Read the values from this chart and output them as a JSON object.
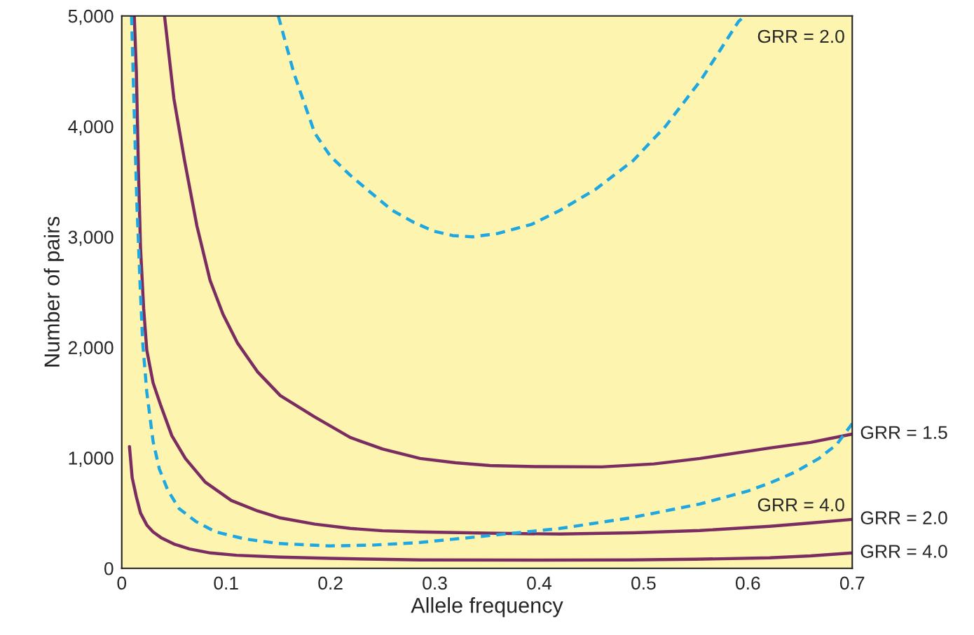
{
  "chart_data": {
    "type": "line",
    "xlabel": "Allele frequency",
    "ylabel": "Number of pairs",
    "xlim": [
      0,
      0.7
    ],
    "ylim": [
      0,
      5000
    ],
    "xticks": [
      0,
      0.1,
      0.2,
      0.3,
      0.4,
      0.5,
      0.6,
      0.7
    ],
    "yticks": [
      0,
      {
        "value": 1000,
        "label": "1,000"
      },
      {
        "value": 2000,
        "label": "2,000"
      },
      {
        "value": 3000,
        "label": "3,000"
      },
      {
        "value": 4000,
        "label": "4,000"
      },
      {
        "value": 5000,
        "label": "5,000"
      }
    ],
    "grid": false,
    "marker": "none",
    "series": [
      {
        "name": "GRR = 1.5",
        "color": "#7b2d62",
        "line_style": "solid",
        "x": [
          0.041,
          0.05,
          0.06,
          0.072,
          0.0846,
          0.097,
          0.111,
          0.13,
          0.152,
          0.185,
          0.219,
          0.25,
          0.286,
          0.32,
          0.353,
          0.4,
          0.46,
          0.51,
          0.554,
          0.621,
          0.66,
          0.7
        ],
        "values": [
          5000,
          4250,
          3700,
          3100,
          2608,
          2300,
          2038,
          1780,
          1563,
          1370,
          1184,
          1080,
          994,
          955,
          930,
          920,
          918,
          945,
          994,
          1089,
          1140,
          1215
        ]
      },
      {
        "name": "GRR = 2.0",
        "color": "#7b2d62",
        "line_style": "solid",
        "x": [
          0.012,
          0.014,
          0.016,
          0.018,
          0.021,
          0.024,
          0.03,
          0.0376,
          0.048,
          0.061,
          0.08,
          0.105,
          0.13,
          0.152,
          0.185,
          0.219,
          0.25,
          0.286,
          0.35,
          0.42,
          0.49,
          0.554,
          0.621,
          0.66,
          0.7
        ],
        "values": [
          5000,
          4500,
          3600,
          2900,
          2350,
          1975,
          1680,
          1468,
          1200,
          994,
          780,
          614,
          520,
          456,
          400,
          361,
          340,
          329,
          318,
          310,
          322,
          342,
          380,
          410,
          443
        ]
      },
      {
        "name": "GRR = 4.0",
        "color": "#7b2d62",
        "line_style": "solid",
        "x": [
          0.0074,
          0.01,
          0.014,
          0.018,
          0.024,
          0.03,
          0.0376,
          0.05,
          0.065,
          0.085,
          0.11,
          0.152,
          0.2,
          0.286,
          0.4,
          0.487,
          0.55,
          0.621,
          0.66,
          0.7
        ],
        "values": [
          1101,
          820,
          646,
          500,
          392,
          330,
          278,
          220,
          175,
          139,
          118,
          101,
          90,
          76,
          75,
          76,
          82,
          95,
          112,
          139
        ]
      },
      {
        "color": "#1ea7e1",
        "line_style": "dashed",
        "x": [
          0.0094,
          0.012,
          0.0145,
          0.0174,
          0.02,
          0.024,
          0.03,
          0.036,
          0.044,
          0.055,
          0.071,
          0.09,
          0.118,
          0.15,
          0.199,
          0.24,
          0.286,
          0.353,
          0.42,
          0.487,
          0.554,
          0.6,
          0.621,
          0.645,
          0.668,
          0.685,
          0.7
        ],
        "values": [
          5000,
          4100,
          3300,
          2608,
          2050,
          1595,
          1150,
          900,
          709,
          540,
          424,
          330,
          266,
          225,
          203,
          210,
          234,
          297,
          361,
          456,
          582,
          700,
          772,
          870,
          994,
          1120,
          1310
        ]
      },
      {
        "color": "#1ea7e1",
        "line_style": "dashed",
        "x": [
          0.15,
          0.165,
          0.185,
          0.2,
          0.219,
          0.24,
          0.259,
          0.28,
          0.299,
          0.317,
          0.336,
          0.36,
          0.393,
          0.42,
          0.454,
          0.49,
          0.521,
          0.555,
          0.591,
          0.597
        ],
        "values": [
          5000,
          4480,
          3937,
          3730,
          3557,
          3390,
          3241,
          3130,
          3051,
          3012,
          3000,
          3030,
          3114,
          3240,
          3430,
          3690,
          4000,
          4420,
          4949,
          5000
        ]
      }
    ],
    "annotations": [
      "GRR = 2.0",
      "GRR = 4.0"
    ]
  }
}
